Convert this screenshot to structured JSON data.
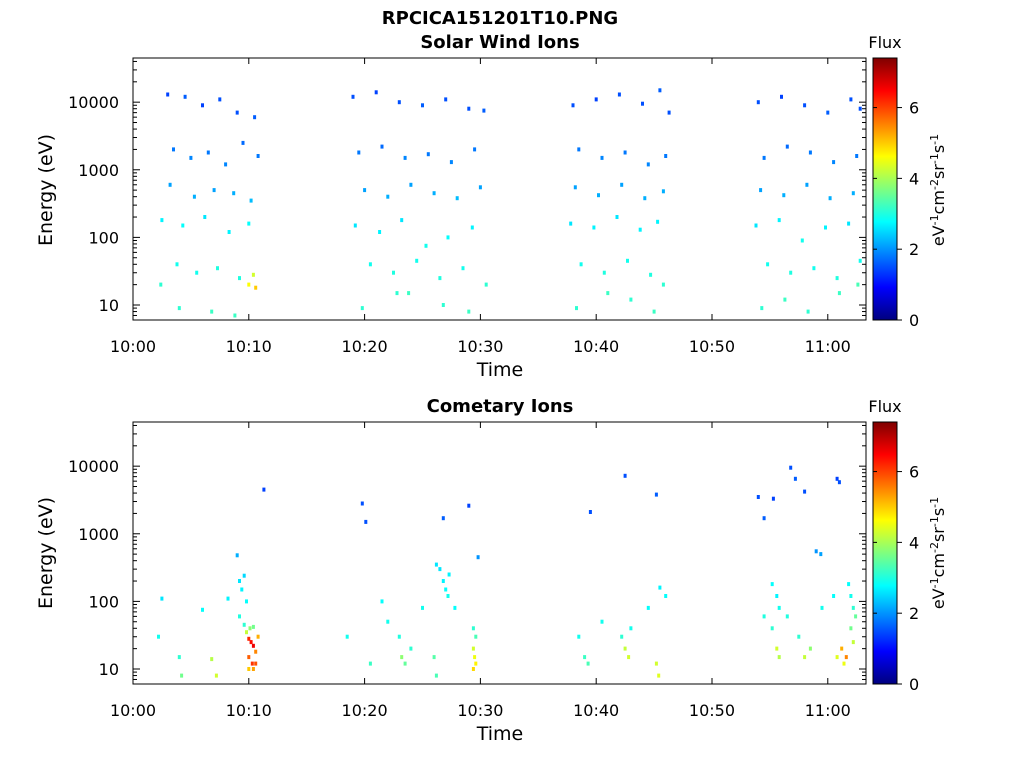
{
  "figure_title": "RPCICA151201T10.PNG",
  "colorscale": {
    "stops": [
      "#00007f",
      "#0000ff",
      "#007fff",
      "#00ffff",
      "#7fff7f",
      "#ffff00",
      "#ff7f00",
      "#ff0000",
      "#7f0000"
    ],
    "range": [
      0,
      7.4
    ]
  },
  "chart_data": [
    {
      "type": "heatmap",
      "title": "Solar Wind Ions",
      "xlabel": "Time",
      "ylabel": "Energy (eV)",
      "x_ticks": [
        "10:00",
        "10:10",
        "10:20",
        "10:30",
        "10:40",
        "10:50",
        "11:00"
      ],
      "x_tick_minutes": [
        0,
        10,
        20,
        30,
        40,
        50,
        60
      ],
      "xlim_minutes": [
        0,
        63.3
      ],
      "y_scale": "log",
      "ylim": [
        6,
        45000
      ],
      "y_ticks": [
        "10000",
        "1000",
        "100",
        "10"
      ],
      "y_tick_values": [
        10000,
        1000,
        100,
        10
      ],
      "colorbar": {
        "label": "Flux",
        "units": "eV-1cm-2sr-1s-1",
        "ticks": [
          "0",
          "2",
          "4",
          "6"
        ],
        "tick_values": [
          0,
          2,
          4,
          6
        ],
        "range": [
          0,
          7.4
        ]
      },
      "scan_intervals_minutes": [
        [
          2.2,
          11.2
        ],
        [
          18.5,
          30.7
        ],
        [
          37.4,
          46.5
        ],
        [
          53.5,
          63.2
        ]
      ],
      "pixels": [
        [
          3.0,
          13000,
          1.4
        ],
        [
          4.5,
          12000,
          1.6
        ],
        [
          6.0,
          9000,
          1.4
        ],
        [
          7.5,
          11000,
          1.5
        ],
        [
          9.0,
          7000,
          1.5
        ],
        [
          10.5,
          6000,
          1.6
        ],
        [
          3.5,
          2000,
          1.8
        ],
        [
          5.0,
          1500,
          1.9
        ],
        [
          6.5,
          1800,
          1.8
        ],
        [
          8.0,
          1200,
          1.9
        ],
        [
          9.5,
          2500,
          1.7
        ],
        [
          10.8,
          1600,
          1.8
        ],
        [
          3.2,
          600,
          2.1
        ],
        [
          5.3,
          400,
          2.2
        ],
        [
          7.0,
          500,
          2.1
        ],
        [
          8.7,
          450,
          2.2
        ],
        [
          10.2,
          350,
          2.3
        ],
        [
          2.5,
          180,
          2.7
        ],
        [
          4.3,
          150,
          2.8
        ],
        [
          6.2,
          200,
          2.6
        ],
        [
          8.3,
          120,
          2.7
        ],
        [
          10.0,
          160,
          2.8
        ],
        [
          3.8,
          40,
          2.9
        ],
        [
          5.5,
          30,
          2.9
        ],
        [
          7.3,
          35,
          3.0
        ],
        [
          9.2,
          25,
          3.0
        ],
        [
          10.0,
          20,
          4.6
        ],
        [
          10.4,
          28,
          4.3
        ],
        [
          10.6,
          18,
          5.0
        ],
        [
          2.4,
          20,
          3.1
        ],
        [
          4.0,
          9,
          3.1
        ],
        [
          6.8,
          8,
          3.2
        ],
        [
          8.8,
          7,
          3.2
        ],
        [
          19.0,
          12000,
          1.5
        ],
        [
          21.0,
          14000,
          1.4
        ],
        [
          23.0,
          10000,
          1.5
        ],
        [
          25.0,
          9000,
          1.6
        ],
        [
          27.0,
          11000,
          1.5
        ],
        [
          29.0,
          8000,
          1.5
        ],
        [
          30.3,
          7500,
          1.6
        ],
        [
          19.5,
          1800,
          1.8
        ],
        [
          21.5,
          2200,
          1.7
        ],
        [
          23.5,
          1500,
          1.9
        ],
        [
          25.5,
          1700,
          1.8
        ],
        [
          27.5,
          1300,
          1.9
        ],
        [
          29.5,
          2000,
          1.8
        ],
        [
          20.0,
          500,
          2.1
        ],
        [
          22.0,
          400,
          2.2
        ],
        [
          24.0,
          600,
          2.1
        ],
        [
          26.0,
          450,
          2.2
        ],
        [
          28.0,
          380,
          2.3
        ],
        [
          30.0,
          550,
          2.1
        ],
        [
          19.2,
          150,
          2.6
        ],
        [
          21.3,
          120,
          2.7
        ],
        [
          23.2,
          180,
          2.6
        ],
        [
          25.3,
          75,
          2.9
        ],
        [
          27.2,
          100,
          2.8
        ],
        [
          29.3,
          140,
          2.7
        ],
        [
          20.5,
          40,
          2.9
        ],
        [
          22.5,
          30,
          3.0
        ],
        [
          24.5,
          45,
          2.9
        ],
        [
          26.5,
          25,
          3.0
        ],
        [
          28.5,
          35,
          2.9
        ],
        [
          30.5,
          20,
          3.1
        ],
        [
          19.8,
          9,
          3.1
        ],
        [
          22.8,
          15,
          3.1
        ],
        [
          23.8,
          15,
          3.2
        ],
        [
          26.8,
          10,
          3.1
        ],
        [
          29.0,
          8,
          3.2
        ],
        [
          38.0,
          9000,
          1.5
        ],
        [
          40.0,
          11000,
          1.4
        ],
        [
          42.0,
          13000,
          1.5
        ],
        [
          44.0,
          9500,
          1.5
        ],
        [
          45.5,
          15000,
          1.6
        ],
        [
          46.3,
          7000,
          1.5
        ],
        [
          38.5,
          2000,
          1.8
        ],
        [
          40.5,
          1500,
          1.9
        ],
        [
          42.5,
          1800,
          1.8
        ],
        [
          44.5,
          1200,
          1.9
        ],
        [
          46.0,
          1600,
          1.8
        ],
        [
          38.2,
          550,
          2.1
        ],
        [
          40.2,
          420,
          2.2
        ],
        [
          42.2,
          600,
          2.1
        ],
        [
          44.2,
          380,
          2.2
        ],
        [
          45.8,
          480,
          2.2
        ],
        [
          37.8,
          160,
          2.6
        ],
        [
          39.8,
          140,
          2.7
        ],
        [
          41.8,
          200,
          2.6
        ],
        [
          43.8,
          130,
          2.7
        ],
        [
          45.3,
          170,
          2.7
        ],
        [
          38.7,
          40,
          2.9
        ],
        [
          40.7,
          30,
          3.0
        ],
        [
          42.7,
          45,
          2.9
        ],
        [
          44.7,
          28,
          3.0
        ],
        [
          38.3,
          9,
          3.1
        ],
        [
          41.0,
          15,
          3.2
        ],
        [
          43.0,
          12,
          3.1
        ],
        [
          45.0,
          8,
          3.2
        ],
        [
          45.8,
          20,
          3.1
        ],
        [
          54.0,
          10000,
          1.5
        ],
        [
          56.0,
          12000,
          1.4
        ],
        [
          58.0,
          9000,
          1.5
        ],
        [
          60.0,
          7000,
          1.6
        ],
        [
          62.0,
          11000,
          1.5
        ],
        [
          62.8,
          8000,
          1.5
        ],
        [
          54.5,
          1500,
          1.8
        ],
        [
          56.5,
          2200,
          1.7
        ],
        [
          58.5,
          1800,
          1.8
        ],
        [
          60.5,
          1300,
          1.9
        ],
        [
          62.5,
          1600,
          1.8
        ],
        [
          54.2,
          500,
          2.1
        ],
        [
          56.2,
          420,
          2.2
        ],
        [
          58.2,
          600,
          2.1
        ],
        [
          60.2,
          380,
          2.2
        ],
        [
          62.2,
          450,
          2.2
        ],
        [
          53.8,
          150,
          2.6
        ],
        [
          55.8,
          180,
          2.7
        ],
        [
          57.8,
          90,
          2.9
        ],
        [
          59.8,
          140,
          2.7
        ],
        [
          61.8,
          160,
          2.6
        ],
        [
          54.8,
          40,
          2.9
        ],
        [
          56.8,
          30,
          3.0
        ],
        [
          58.8,
          35,
          2.9
        ],
        [
          60.8,
          25,
          3.0
        ],
        [
          62.8,
          45,
          2.9
        ],
        [
          54.3,
          9,
          3.1
        ],
        [
          56.3,
          12,
          3.2
        ],
        [
          58.3,
          8,
          3.1
        ],
        [
          61.0,
          15,
          3.2
        ],
        [
          62.6,
          20,
          3.3
        ]
      ]
    },
    {
      "type": "heatmap",
      "title": "Cometary Ions",
      "xlabel": "Time",
      "ylabel": "Energy (eV)",
      "x_ticks": [
        "10:00",
        "10:10",
        "10:20",
        "10:30",
        "10:40",
        "10:50",
        "11:00"
      ],
      "x_tick_minutes": [
        0,
        10,
        20,
        30,
        40,
        50,
        60
      ],
      "xlim_minutes": [
        0,
        63.3
      ],
      "y_scale": "log",
      "ylim": [
        6,
        45000
      ],
      "y_ticks": [
        "10000",
        "1000",
        "100",
        "10"
      ],
      "y_tick_values": [
        10000,
        1000,
        100,
        10
      ],
      "colorbar": {
        "label": "Flux",
        "units": "eV-1cm-2sr-1s-1",
        "ticks": [
          "0",
          "2",
          "4",
          "6"
        ],
        "tick_values": [
          0,
          2,
          4,
          6
        ],
        "range": [
          0,
          7.4
        ]
      },
      "pixels": [
        [
          11.3,
          4500,
          1.4
        ],
        [
          19.8,
          2800,
          1.5
        ],
        [
          20.1,
          1500,
          1.5
        ],
        [
          29.0,
          2600,
          1.4
        ],
        [
          26.8,
          1700,
          1.6
        ],
        [
          29.8,
          450,
          2.0
        ],
        [
          39.5,
          2100,
          1.5
        ],
        [
          42.5,
          7200,
          1.5
        ],
        [
          45.2,
          3800,
          1.6
        ],
        [
          54.0,
          3500,
          1.5
        ],
        [
          54.5,
          1700,
          1.6
        ],
        [
          55.3,
          3300,
          1.4
        ],
        [
          56.8,
          9500,
          1.5
        ],
        [
          57.2,
          6500,
          1.6
        ],
        [
          58.0,
          4200,
          1.5
        ],
        [
          60.8,
          6500,
          1.4
        ],
        [
          61.0,
          5800,
          1.5
        ],
        [
          59.0,
          550,
          2.0
        ],
        [
          59.4,
          500,
          2.1
        ],
        [
          9.0,
          480,
          2.2
        ],
        [
          9.2,
          200,
          2.6
        ],
        [
          9.4,
          150,
          2.7
        ],
        [
          9.6,
          240,
          2.5
        ],
        [
          9.8,
          100,
          2.8
        ],
        [
          9.2,
          60,
          3.0
        ],
        [
          9.6,
          45,
          3.1
        ],
        [
          9.8,
          35,
          4.2
        ],
        [
          10.0,
          28,
          6.2
        ],
        [
          10.2,
          25,
          6.4
        ],
        [
          10.4,
          22,
          6.6
        ],
        [
          10.6,
          18,
          5.5
        ],
        [
          10.8,
          30,
          5.2
        ],
        [
          10.0,
          15,
          5.8
        ],
        [
          10.3,
          12,
          6.1
        ],
        [
          10.6,
          12,
          5.9
        ],
        [
          10.0,
          10,
          5.0
        ],
        [
          10.4,
          10,
          5.3
        ],
        [
          10.1,
          40,
          3.8
        ],
        [
          10.4,
          42,
          3.6
        ],
        [
          2.5,
          110,
          2.6
        ],
        [
          2.2,
          30,
          2.9
        ],
        [
          4.0,
          15,
          3.1
        ],
        [
          4.2,
          8,
          3.6
        ],
        [
          6.0,
          75,
          2.8
        ],
        [
          6.8,
          14,
          4.1
        ],
        [
          7.2,
          8,
          4.3
        ],
        [
          8.2,
          110,
          2.7
        ],
        [
          26.2,
          350,
          2.6
        ],
        [
          26.5,
          300,
          2.6
        ],
        [
          26.8,
          200,
          2.7
        ],
        [
          27.0,
          150,
          2.8
        ],
        [
          27.2,
          120,
          2.9
        ],
        [
          27.3,
          250,
          2.7
        ],
        [
          29.4,
          40,
          3.1
        ],
        [
          29.6,
          30,
          3.3
        ],
        [
          29.4,
          20,
          4.3
        ],
        [
          29.5,
          15,
          4.5
        ],
        [
          29.6,
          12,
          4.7
        ],
        [
          29.4,
          10,
          4.9
        ],
        [
          22.0,
          50,
          2.9
        ],
        [
          23.0,
          30,
          3.0
        ],
        [
          23.2,
          15,
          3.8
        ],
        [
          23.5,
          12,
          3.5
        ],
        [
          24.0,
          20,
          3.1
        ],
        [
          26.0,
          15,
          3.4
        ],
        [
          26.2,
          8,
          3.3
        ],
        [
          20.5,
          12,
          3.2
        ],
        [
          18.5,
          30,
          2.9
        ],
        [
          21.5,
          100,
          2.8
        ],
        [
          25.0,
          80,
          2.9
        ],
        [
          27.8,
          80,
          2.8
        ],
        [
          38.5,
          30,
          2.9
        ],
        [
          39.0,
          15,
          3.2
        ],
        [
          39.3,
          12,
          3.3
        ],
        [
          40.5,
          50,
          2.9
        ],
        [
          42.2,
          30,
          3.1
        ],
        [
          42.5,
          20,
          4.2
        ],
        [
          42.8,
          15,
          4.3
        ],
        [
          43.0,
          40,
          2.9
        ],
        [
          45.2,
          12,
          4.3
        ],
        [
          45.4,
          8,
          4.4
        ],
        [
          44.5,
          80,
          2.8
        ],
        [
          45.5,
          160,
          2.7
        ],
        [
          46.0,
          120,
          2.8
        ],
        [
          54.5,
          60,
          3.0
        ],
        [
          55.2,
          180,
          2.8
        ],
        [
          55.6,
          120,
          2.7
        ],
        [
          55.8,
          80,
          2.9
        ],
        [
          55.2,
          40,
          3.1
        ],
        [
          55.6,
          20,
          4.3
        ],
        [
          55.8,
          15,
          4.1
        ],
        [
          56.5,
          60,
          3.0
        ],
        [
          57.5,
          30,
          3.1
        ],
        [
          58.0,
          15,
          4.2
        ],
        [
          58.5,
          20,
          3.8
        ],
        [
          59.5,
          80,
          2.9
        ],
        [
          60.5,
          120,
          2.8
        ],
        [
          60.8,
          15,
          4.4
        ],
        [
          61.2,
          20,
          5.2
        ],
        [
          61.6,
          15,
          5.5
        ],
        [
          61.8,
          180,
          2.8
        ],
        [
          62.0,
          120,
          2.9
        ],
        [
          62.2,
          80,
          3.1
        ],
        [
          62.0,
          40,
          3.6
        ],
        [
          62.2,
          25,
          4.2
        ],
        [
          62.4,
          60,
          3.5
        ],
        [
          61.4,
          12,
          4.5
        ]
      ]
    }
  ]
}
